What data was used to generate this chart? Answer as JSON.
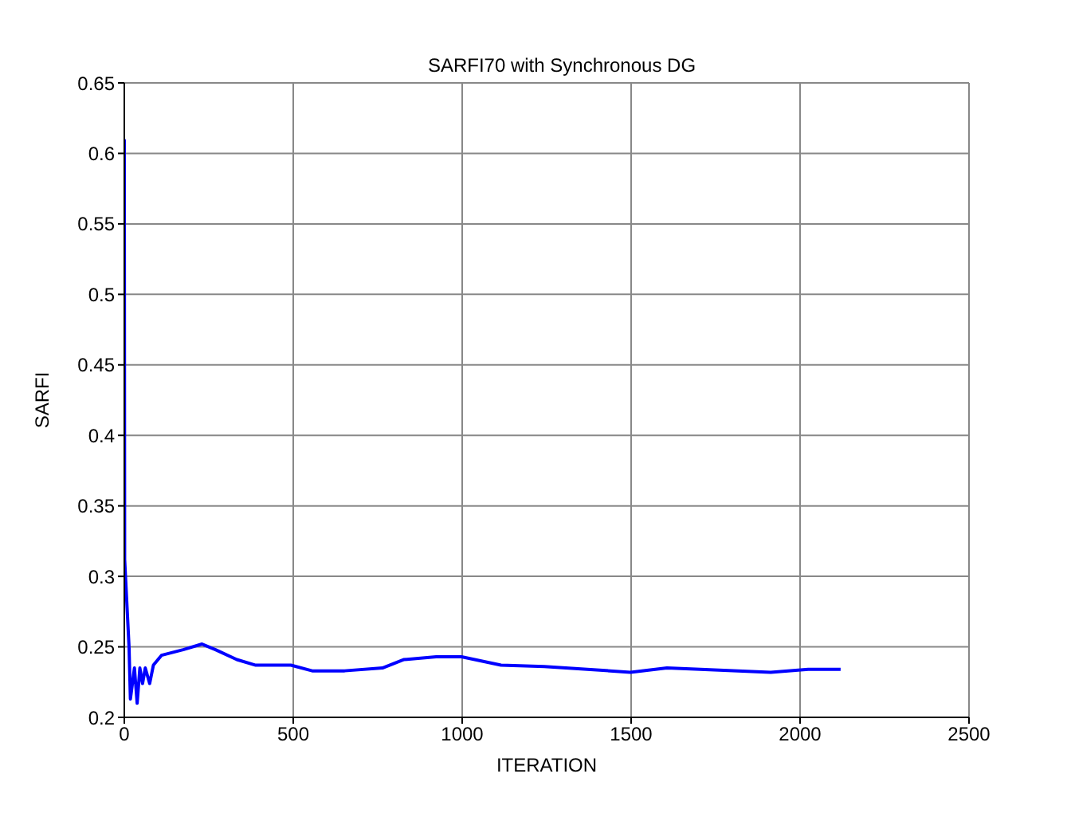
{
  "chart_data": {
    "type": "line",
    "title": "SARFI70 with Synchronous DG",
    "xlabel": "ITERATION",
    "ylabel": "SARFI",
    "xlim": [
      0,
      2500
    ],
    "xticks": [
      0,
      500,
      1000,
      1500,
      2000,
      2500
    ],
    "ylim": [
      0.2,
      0.65
    ],
    "yticks": [
      0.2,
      0.25,
      0.3,
      0.35,
      0.4,
      0.45,
      0.5,
      0.55,
      0.6,
      0.65
    ],
    "grid": true,
    "marker": "none",
    "line_style": "solid",
    "series": [
      {
        "color": "#0000ff",
        "x": [
          0,
          1,
          14,
          18,
          30,
          38,
          46,
          54,
          62,
          75,
          86,
          110,
          142,
          174,
          230,
          270,
          333,
          389,
          493,
          556,
          652,
          764,
          828,
          923,
          998,
          1115,
          1243,
          1498,
          1606,
          1705,
          1913,
          2024,
          2120
        ],
        "values": [
          0.61,
          0.312,
          0.25,
          0.213,
          0.235,
          0.21,
          0.235,
          0.224,
          0.235,
          0.224,
          0.237,
          0.244,
          0.246,
          0.248,
          0.252,
          0.248,
          0.241,
          0.237,
          0.237,
          0.233,
          0.233,
          0.235,
          0.241,
          0.243,
          0.243,
          0.237,
          0.236,
          0.232,
          0.235,
          0.234,
          0.232,
          0.234,
          0.234
        ]
      }
    ]
  }
}
